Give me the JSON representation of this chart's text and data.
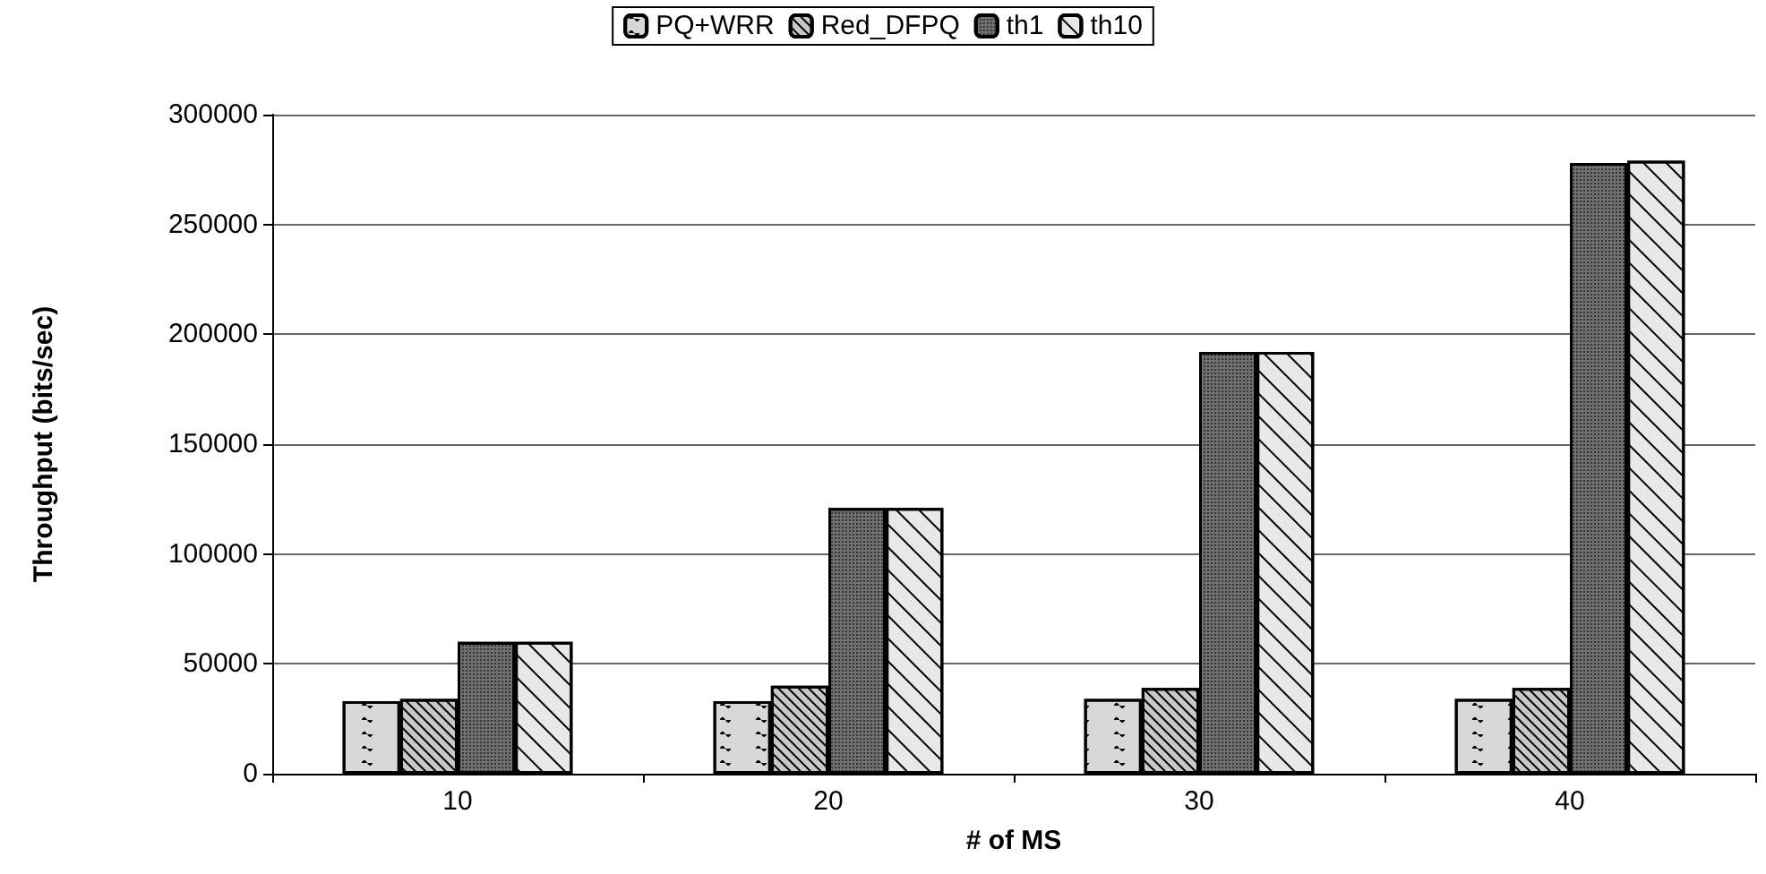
{
  "chart_data": {
    "type": "bar",
    "xlabel": "# of MS",
    "ylabel": "Throughput (bits/sec)",
    "categories": [
      "10",
      "20",
      "30",
      "40"
    ],
    "series": [
      {
        "name": "PQ+WRR",
        "color": "#d8d8d8",
        "values": [
          33000,
          33000,
          34000,
          34000
        ]
      },
      {
        "name": "Red_DFPQ",
        "color": "#c8c8c8",
        "values": [
          34000,
          40000,
          39000,
          39000
        ]
      },
      {
        "name": "th1",
        "color": "#707070",
        "values": [
          60000,
          121000,
          192000,
          278000
        ]
      },
      {
        "name": "th10",
        "color": "#e8e8e8",
        "values": [
          60000,
          121000,
          192000,
          279000
        ]
      }
    ],
    "ylim": [
      0,
      300000
    ],
    "yticks": [
      0,
      50000,
      100000,
      150000,
      200000,
      250000,
      300000
    ],
    "grid": "y",
    "legend": "top"
  }
}
